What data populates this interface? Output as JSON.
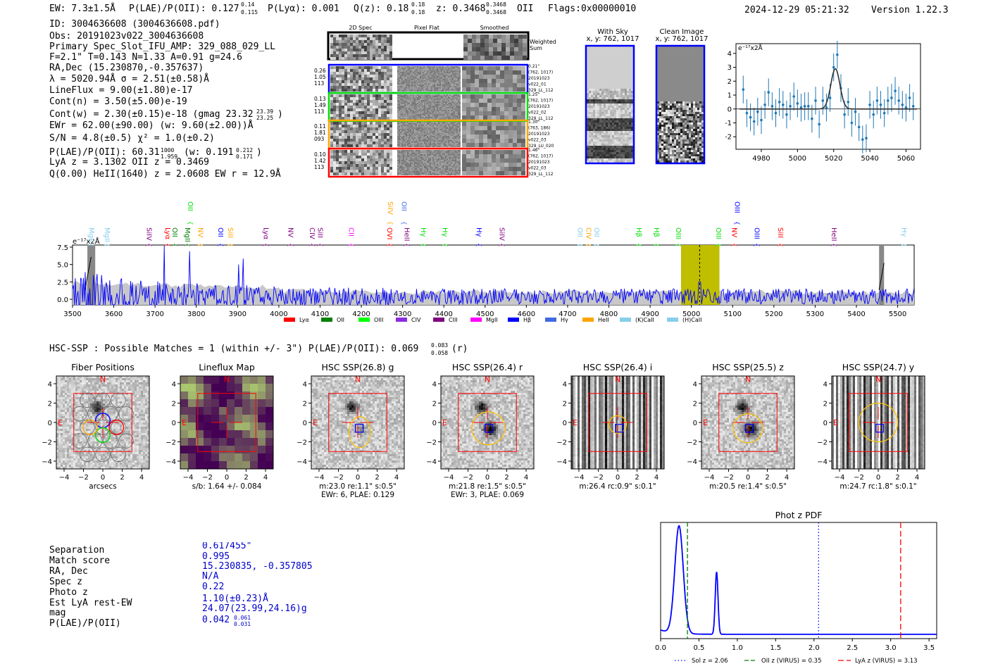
{
  "header": {
    "ew": "EW: 7.3±1.5Å",
    "plae_main": "P(LAE)/P(OII): 0.127",
    "plae_hi": "0.14",
    "plae_lo": "0.115",
    "plya": "P(Lyα): 0.001",
    "qz": "Q(z): 0.18",
    "qz_hi": "0.18",
    "qz_lo": "0.18",
    "z": "z: 0.3468",
    "z_hi": "0.3468",
    "z_lo": "0.3468",
    "z_line": "OII",
    "flags": "Flags:0x00000010",
    "timestamp": "2024-12-29 05:21:32",
    "version": "Version 1.22.3"
  },
  "info_lines": [
    "ID: 3004636608 (3004636608.pdf)",
    "Obs: 20191023v022_3004636608",
    "Primary Spec_Slot_IFU_AMP: 329_088_029_LL",
    "F=2.1\"  T=0.143  N=1.33  A=0.91  g=24.6",
    "RA,Dec (15.230870,-0.357637)",
    "λ = 5020.94Å  σ = 2.51(±0.58)Å",
    "LineFlux = 9.00(±1.80)e-17",
    "Cont(n) = 3.50(±5.00)e-19",
    "Cont(w) = 2.30(±0.15)e-18 (gmag 23.32",
    "EWr = 62.00(±90.00) (w: 9.60(±2.00))Å",
    "S/N = 4.8(±0.5)  χ² = 1.0(±0.2)",
    "P(LAE)/P(OII): 60.31",
    "LyA z = 3.1302  OII z = 0.3469",
    "Q(0.00) HeII(1640) z = 2.0608  EW r = 12.9Å"
  ],
  "info_sub": {
    "gmag_hi": "23.39",
    "gmag_lo": "23.25",
    "plae_hi": "1000",
    "plae_lo": "1.959",
    "plae_w": "(w: 0.191",
    "plae_w_hi": "0.212",
    "plae_w_lo": "0.171"
  },
  "cutouts": {
    "col_titles": [
      "2D Spec",
      "Pixel Flat",
      "Smoothed"
    ],
    "weighted_label": "Weighted Sum",
    "rows": [
      {
        "left": [
          "0.26",
          "1.05",
          "113"
        ],
        "right": [
          "0.21\"",
          "(762, 1017)",
          "20191023",
          "v022_01",
          "329_LL_112"
        ],
        "color": "#0000ff"
      },
      {
        "left": [
          "0.13",
          "1.49",
          "113"
        ],
        "right": [
          "1.25\"",
          "(762, 1017)",
          "20191023",
          "v022_02",
          "329_LL_112"
        ],
        "color": "#00dd00"
      },
      {
        "left": [
          "0.11",
          "1.81",
          "093"
        ],
        "right": [
          "1.30\"",
          "(763, 186)",
          "20191023",
          "v022_03",
          "329_LU_020"
        ],
        "color": "#ffa500"
      },
      {
        "left": [
          "0.10",
          "1.42",
          "113"
        ],
        "right": [
          "1.46\"",
          "(762, 1017)",
          "20191023",
          "v022_03",
          "329_LL_112"
        ],
        "color": "#ff0000"
      }
    ]
  },
  "sky": {
    "with_sky": "With Sky",
    "with_sky_xy": "x, y: 762, 1017",
    "clean": "Clean Image",
    "clean_xy": "x, y: 762, 1017"
  },
  "fit_chart": {
    "type": "scatter",
    "unit_label": "e⁻¹⁷x2Å",
    "xlim": [
      4966,
      5068
    ],
    "ylim": [
      -2.9,
      4.7
    ],
    "xticks": [
      4980,
      5000,
      5020,
      5040,
      5060
    ],
    "yticks": [
      -2,
      -1,
      0,
      1,
      2,
      3,
      4
    ],
    "x": [
      4970,
      4972,
      4974,
      4976,
      4978,
      4980,
      4982,
      4984,
      4986,
      4988,
      4990,
      4992,
      4994,
      4996,
      4998,
      5000,
      5002,
      5004,
      5006,
      5008,
      5010,
      5012,
      5014,
      5016,
      5018,
      5020,
      5022,
      5024,
      5026,
      5028,
      5030,
      5032,
      5034,
      5036,
      5038,
      5040,
      5042,
      5044,
      5046,
      5048,
      5050,
      5052,
      5054,
      5056,
      5058,
      5060,
      5062,
      5064
    ],
    "y": [
      1.4,
      -0.3,
      -0.6,
      -0.9,
      -0.2,
      -0.8,
      0.3,
      1.2,
      0.2,
      -0.3,
      0.5,
      0.3,
      -0.4,
      0.2,
      0.9,
      0.4,
      0.1,
      0.2,
      0.2,
      -0.7,
      0.6,
      -1.1,
      0.6,
      0.1,
      0.8,
      3.0,
      3.9,
      1.5,
      -0.4,
      0.5,
      -1.0,
      -0.2,
      -1.3,
      -2.2,
      -2.1,
      0.3,
      -0.4,
      0.6,
      0.3,
      -0.3,
      0.6,
      0.8,
      1.3,
      0.6,
      0.3,
      0.1,
      0.8,
      0.2
    ],
    "err": 1.0,
    "gauss": {
      "center": 5020.94,
      "sigma": 2.51,
      "amp": 2.9
    }
  },
  "spectrum": {
    "unit_label": "e⁻¹⁷x2Å",
    "xlim": [
      3500,
      5540
    ],
    "ylim": [
      -0.8,
      7.8
    ],
    "xticks": [
      3500,
      3600,
      3700,
      3800,
      3900,
      4000,
      4100,
      4200,
      4300,
      4400,
      4500,
      4600,
      4700,
      4800,
      4900,
      5000,
      5100,
      5200,
      5300,
      5400,
      5500
    ],
    "yticks": [
      0.0,
      2.5,
      5.0,
      7.5
    ],
    "highlight": [
      4975,
      5068
    ],
    "line_center": 5020,
    "lines": [
      {
        "label": "MgII",
        "x": 3535,
        "color": "#87ceeb",
        "row": 2
      },
      {
        "label": "MgII",
        "x": 3573,
        "color": "#87ceeb",
        "row": 2
      },
      {
        "label": "SiIV",
        "x": 3675,
        "color": "#800080",
        "row": 2
      },
      {
        "label": "Lyα",
        "x": 3720,
        "color": "#ff0000",
        "row": 2
      },
      {
        "label": "OII",
        "x": 3737,
        "color": "#008000",
        "row": 2
      },
      {
        "label": "MgII",
        "x": 3768,
        "color": "#008000",
        "row": 2
      },
      {
        "label": "OII",
        "x": 3775,
        "color": "#00dd00",
        "row": 0
      },
      {
        "label": "NV",
        "x": 3800,
        "color": "#ffa500",
        "row": 2
      },
      {
        "label": "OII",
        "x": 3848,
        "color": "#0000ff",
        "row": 2
      },
      {
        "label": "SiII",
        "x": 3872,
        "color": "#ffa500",
        "row": 2
      },
      {
        "label": "Lyα",
        "x": 3958,
        "color": "#800080",
        "row": 2
      },
      {
        "label": "NV",
        "x": 4018,
        "color": "#800080",
        "row": 2
      },
      {
        "label": "CIV",
        "x": 4070,
        "color": "#800080",
        "row": 2
      },
      {
        "label": "SiII",
        "x": 4090,
        "color": "#800080",
        "row": 2
      },
      {
        "label": "CII",
        "x": 4165,
        "color": "#ff00ff",
        "row": 2
      },
      {
        "label": "SiIV",
        "x": 4260,
        "color": "#ffa500",
        "row": 0
      },
      {
        "label": "OII",
        "x": 4293,
        "color": "#4169e1",
        "row": 0
      },
      {
        "label": "OVI",
        "x": 4258,
        "color": "#ff0000",
        "row": 2
      },
      {
        "label": "HeII",
        "x": 4300,
        "color": "#800080",
        "row": 2
      },
      {
        "label": "Hγ",
        "x": 4340,
        "color": "#00dd00",
        "row": 2
      },
      {
        "label": "Hγ",
        "x": 4392,
        "color": "#00dd00",
        "row": 2
      },
      {
        "label": "Hγ",
        "x": 4475,
        "color": "#0000ff",
        "row": 2
      },
      {
        "label": "SiIV",
        "x": 4530,
        "color": "#800080",
        "row": 2
      },
      {
        "label": "OII",
        "x": 4720,
        "color": "#87ceeb",
        "row": 2
      },
      {
        "label": "CIV",
        "x": 4740,
        "color": "#ffa500",
        "row": 2
      },
      {
        "label": "OII",
        "x": 4760,
        "color": "#87ceeb",
        "row": 2
      },
      {
        "label": "Hβ",
        "x": 4862,
        "color": "#00dd00",
        "row": 2
      },
      {
        "label": "Hβ",
        "x": 4905,
        "color": "#00dd00",
        "row": 2
      },
      {
        "label": "OIII",
        "x": 4958,
        "color": "#00dd00",
        "row": 2
      },
      {
        "label": "OIII",
        "x": 5055,
        "color": "#00dd00",
        "row": 2
      },
      {
        "label": "OIII",
        "x": 5100,
        "color": "#0000ff",
        "row": 0
      },
      {
        "label": "NV",
        "x": 5094,
        "color": "#ff0000",
        "row": 2
      },
      {
        "label": "OIII",
        "x": 5148,
        "color": "#0000ff",
        "row": 2
      },
      {
        "label": "SiII",
        "x": 5205,
        "color": "#ff0000",
        "row": 2
      },
      {
        "label": "HeII",
        "x": 5335,
        "color": "#800080",
        "row": 2
      },
      {
        "label": "Hγ",
        "x": 5505,
        "color": "#87ceeb",
        "row": 2
      }
    ],
    "legend": [
      {
        "label": "Lyα",
        "color": "#ff0000"
      },
      {
        "label": "OII",
        "color": "#008000"
      },
      {
        "label": "OIII",
        "color": "#00ff00"
      },
      {
        "label": "CIV",
        "color": "#8a2be2"
      },
      {
        "label": "CIII",
        "color": "#800080"
      },
      {
        "label": "MgII",
        "color": "#ff00ff"
      },
      {
        "label": "Hβ",
        "color": "#0000ff"
      },
      {
        "label": "Hγ",
        "color": "#4169e1"
      },
      {
        "label": "HeII",
        "color": "#ffa500"
      },
      {
        "label": "(K)CaII",
        "color": "#87ceeb"
      },
      {
        "label": "(H)CaII",
        "color": "#87ceeb"
      }
    ]
  },
  "hsc": {
    "summary": "HSC-SSP : Possible Matches = 1 (within +/- 3\")  P(LAE)/P(OII): 0.069",
    "summary_hi": "0.083",
    "summary_lo": "0.058",
    "summary_band": "(r)",
    "ticks": [
      -4,
      -2,
      0,
      2,
      4
    ],
    "panels": [
      {
        "title": "Fiber Positions",
        "captions": [
          "arcsecs"
        ],
        "kind": "fiber"
      },
      {
        "title": "Lineflux Map",
        "captions": [
          "s/b: 1.64 +/- 0.084"
        ],
        "kind": "flux"
      },
      {
        "title": "HSC SSP(26.8) g",
        "captions": [
          "m:23.0   re:1.1\"   s:0.5\"",
          "EWr: 6, PLAE: 0.129"
        ],
        "kind": "g"
      },
      {
        "title": "HSC SSP(26.4) r",
        "captions": [
          "m:21.8   re:1.5\"   s:0.5\"",
          "EWr: 3, PLAE: 0.069"
        ],
        "kind": "r"
      },
      {
        "title": "HSC SSP(26.4) i",
        "captions": [
          "m:26.4  rc:0.9\"  s:0.1\""
        ],
        "kind": "i"
      },
      {
        "title": "HSC SSP(25.5) z",
        "captions": [
          "m:20.5   re:1.4\"   s:0.5\""
        ],
        "kind": "z"
      },
      {
        "title": "HSC SSP(24.7) y",
        "captions": [
          "m:24.7  rc:1.8\"  s:0.1\""
        ],
        "kind": "y"
      }
    ],
    "north": "N",
    "east": "E"
  },
  "match": {
    "labels": [
      "Separation",
      "Match score",
      "RA, Dec",
      "Spec z",
      "Photo z",
      "Est LyA rest-EW",
      "mag",
      "P(LAE)/P(OII)"
    ],
    "values": [
      "0.617455\"",
      "0.995",
      "15.230835, -0.357805",
      "N/A",
      "0.22",
      "1.10(±0.23)Å",
      "24.07(23.99,24.16)g",
      "0.042"
    ],
    "plae_hi": "0.061",
    "plae_lo": "0.031"
  },
  "photz": {
    "type": "line",
    "title": "Phot z PDF",
    "xlim": [
      0.0,
      3.6
    ],
    "xticks": [
      0.0,
      0.5,
      1.0,
      1.5,
      2.0,
      2.5,
      3.0,
      3.5
    ],
    "peaks": [
      {
        "mu": 0.24,
        "sigma": 0.055,
        "amp": 1.0
      },
      {
        "mu": 0.73,
        "sigma": 0.018,
        "amp": 0.58
      }
    ],
    "base": 0.04,
    "vlines": [
      {
        "label": "Sol z = 2.06",
        "x": 2.06,
        "color": "#0000ff",
        "dash": "1.5,3"
      },
      {
        "label": "OII z (VIRUS) = 0.35",
        "x": 0.35,
        "color": "#008000",
        "dash": "6,3"
      },
      {
        "label": "LyA z (VIRUS) = 3.13",
        "x": 3.13,
        "color": "#ff0000",
        "dash": "8,4"
      }
    ]
  }
}
